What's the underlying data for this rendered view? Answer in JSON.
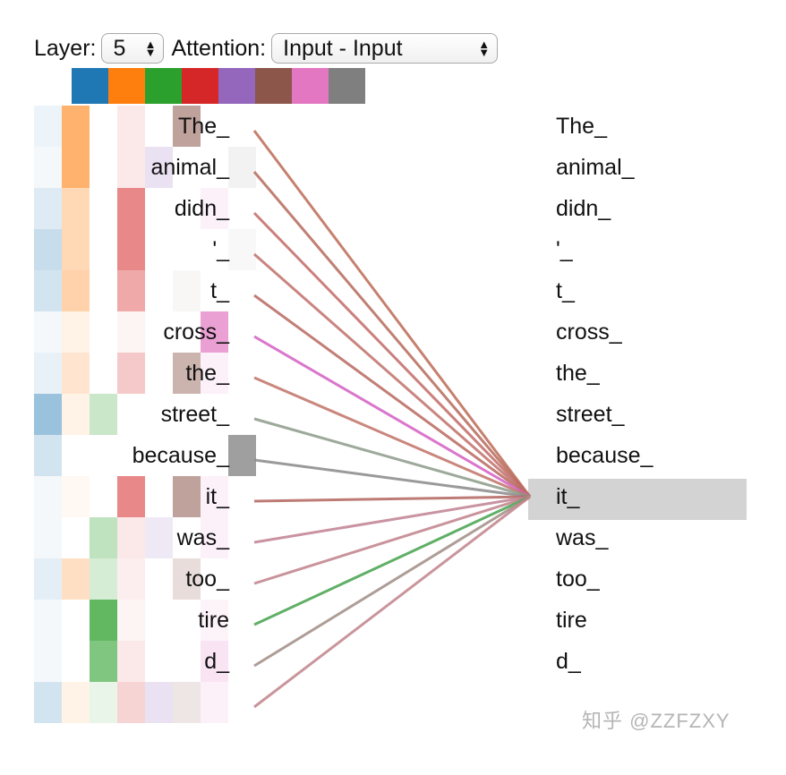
{
  "controls": {
    "layer_label": "Layer:",
    "layer_value": "5",
    "attention_label": "Attention:",
    "attention_value": "Input - Input"
  },
  "head_colors": [
    "#1f77b4",
    "#ff7f0e",
    "#2ca02c",
    "#d62728",
    "#9467bd",
    "#8c564b",
    "#e377c2",
    "#7f7f7f"
  ],
  "tokens_left": [
    "The_",
    "animal_",
    "didn_",
    "'_",
    "t_",
    "cross_",
    "the_",
    "street_",
    "because_",
    "it_",
    "was_",
    "too_",
    "tire",
    "d_",
    ""
  ],
  "tokens_right": [
    "The_",
    "animal_",
    "didn_",
    "'_",
    "t_",
    "cross_",
    "the_",
    "street_",
    "because_",
    "it_",
    "was_",
    "too_",
    "tire",
    "d_"
  ],
  "selected_token_index": 9,
  "heatmap": [
    [
      [
        0,
        0.08
      ],
      [
        1,
        0.6
      ],
      [
        3,
        0.1
      ]
    ],
    [
      [
        0,
        0.05
      ],
      [
        1,
        0.6
      ],
      [
        3,
        0.1
      ]
    ],
    [
      [
        0,
        0.15
      ],
      [
        1,
        0.3
      ],
      [
        3,
        0.55
      ]
    ],
    [
      [
        0,
        0.25
      ],
      [
        1,
        0.3
      ],
      [
        3,
        0.55
      ]
    ],
    [
      [
        0,
        0.2
      ],
      [
        1,
        0.35
      ],
      [
        3,
        0.4
      ]
    ],
    [
      [
        0,
        0.05
      ],
      [
        1,
        0.1
      ],
      [
        3,
        0.05
      ]
    ],
    [
      [
        0,
        0.1
      ],
      [
        1,
        0.2
      ],
      [
        3,
        0.25
      ]
    ],
    [
      [
        0,
        0.45
      ],
      [
        1,
        0.1
      ],
      [
        2,
        0.25
      ]
    ],
    [
      [
        0,
        0.2
      ]
    ],
    [
      [
        0,
        0.05
      ],
      [
        1,
        0.05
      ],
      [
        3,
        0.55
      ]
    ],
    [
      [
        0,
        0.05
      ],
      [
        2,
        0.3
      ],
      [
        3,
        0.1
      ]
    ],
    [
      [
        0,
        0.12
      ],
      [
        1,
        0.25
      ],
      [
        2,
        0.2
      ],
      [
        3,
        0.08
      ]
    ],
    [
      [
        0,
        0.05
      ],
      [
        2,
        0.75
      ],
      [
        3,
        0.05
      ]
    ],
    [
      [
        0,
        0.05
      ],
      [
        2,
        0.6
      ],
      [
        3,
        0.1
      ]
    ],
    [
      [
        0,
        0.2
      ],
      [
        1,
        0.1
      ],
      [
        2,
        0.1
      ],
      [
        3,
        0.2
      ],
      [
        4,
        0.2
      ],
      [
        5,
        0.15
      ],
      [
        6,
        0.1
      ]
    ]
  ],
  "token_shading": [
    [
      [
        5,
        0.55
      ]
    ],
    [
      [
        4,
        0.2
      ],
      [
        7,
        0.1
      ]
    ],
    [
      [
        6,
        0.1
      ]
    ],
    [
      [
        7,
        0.05
      ]
    ],
    [
      [
        5,
        0.05
      ]
    ],
    [
      [
        6,
        0.7
      ]
    ],
    [
      [
        5,
        0.45
      ],
      [
        6,
        0.1
      ]
    ],
    [],
    [
      [
        7,
        0.75
      ]
    ],
    [
      [
        5,
        0.55
      ],
      [
        6,
        0.1
      ]
    ],
    [
      [
        4,
        0.15
      ],
      [
        6,
        0.1
      ]
    ],
    [
      [
        5,
        0.2
      ]
    ],
    [
      [
        6,
        0.08
      ]
    ],
    [
      [
        6,
        0.2
      ]
    ]
  ],
  "attention_lines": [
    {
      "color": "#c0725e",
      "weight": 0.9
    },
    {
      "color": "#b56a5a",
      "weight": 0.85
    },
    {
      "color": "#c26a66",
      "weight": 0.85
    },
    {
      "color": "#c0706a",
      "weight": 0.85
    },
    {
      "color": "#b8675f",
      "weight": 0.85
    },
    {
      "color": "#d667c6",
      "weight": 0.9
    },
    {
      "color": "#c07266",
      "weight": 0.85
    },
    {
      "color": "#8c9a88",
      "weight": 0.85
    },
    {
      "color": "#8f8f8f",
      "weight": 0.9
    },
    {
      "color": "#b3645e",
      "weight": 0.85
    },
    {
      "color": "#c08090",
      "weight": 0.85
    },
    {
      "color": "#c0808a",
      "weight": 0.85
    },
    {
      "color": "#4fa655",
      "weight": 0.9
    },
    {
      "color": "#a08c84",
      "weight": 0.85
    },
    {
      "color": "#c0828a",
      "weight": 0.85
    }
  ],
  "watermark": "知乎 @ZZFZXY"
}
